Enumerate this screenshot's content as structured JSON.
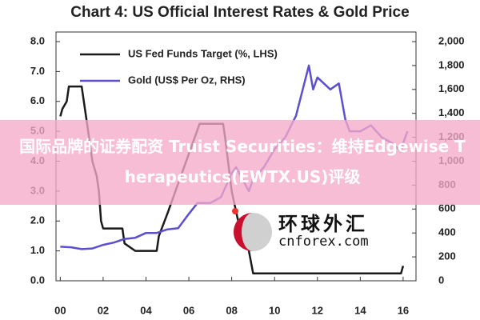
{
  "chart_data": {
    "type": "line",
    "title": "Chart 4: US Official Interest Rates & Gold Price",
    "xlim": [
      -0.2,
      16.6
    ],
    "xticks": [
      {
        "value": 0,
        "label": "00"
      },
      {
        "value": 2,
        "label": "02"
      },
      {
        "value": 4,
        "label": "04"
      },
      {
        "value": 6,
        "label": "06"
      },
      {
        "value": 8,
        "label": "08"
      },
      10,
      12,
      14,
      16
    ],
    "ylim": [
      0,
      8
    ],
    "yticks": [
      {
        "value": 0,
        "label": "0.0"
      },
      {
        "value": 1,
        "label": "1.0"
      },
      {
        "value": 2,
        "label": "2.0"
      },
      {
        "value": 3,
        "label": "3.0"
      },
      {
        "value": 4,
        "label": "4.0"
      },
      {
        "value": 5,
        "label": "5.0"
      },
      {
        "value": 6,
        "label": "6.0"
      },
      {
        "value": 7,
        "label": "7.0"
      },
      {
        "value": 8,
        "label": "8.0"
      }
    ],
    "y2lim": [
      0,
      2000
    ],
    "y2ticks": [
      0,
      200,
      400,
      600,
      800,
      {
        "value": 1000,
        "label": "1,000"
      },
      {
        "value": 1200,
        "label": "1,200"
      },
      {
        "value": 1400,
        "label": "1,400"
      },
      {
        "value": 1600,
        "label": "1,600"
      },
      {
        "value": 1800,
        "label": "1,800"
      },
      {
        "value": 2000,
        "label": "2,000"
      }
    ],
    "legend": "upper left",
    "series": [
      {
        "name": "US Fed Funds Target (%, LHS)",
        "color": "#1a1a1a",
        "x": [
          0,
          0.1,
          0.3,
          0.4,
          1.0,
          1.1,
          1.3,
          1.5,
          1.7,
          1.8,
          1.9,
          2.0,
          2.9,
          3.0,
          3.5,
          4.5,
          4.6,
          5.0,
          5.5,
          6.0,
          6.5,
          7.6,
          7.7,
          8.0,
          8.3,
          8.8,
          9.0,
          15.9,
          16.0
        ],
        "values": [
          5.5,
          5.75,
          6.0,
          6.5,
          6.5,
          6.0,
          5.0,
          4.0,
          3.5,
          3.0,
          2.0,
          1.75,
          1.75,
          1.25,
          1.0,
          1.0,
          1.5,
          2.25,
          3.25,
          4.25,
          5.25,
          5.25,
          4.75,
          3.0,
          2.0,
          1.0,
          0.25,
          0.25,
          0.5
        ]
      },
      {
        "name": "Gold (US$ Per Oz, RHS)",
        "color": "#5b4fd0",
        "axis": "y2",
        "x": [
          0,
          0.5,
          1.0,
          1.5,
          2.0,
          2.5,
          3.0,
          3.5,
          4.0,
          4.5,
          5.0,
          5.5,
          6.0,
          6.4,
          7.0,
          7.5,
          8.0,
          8.2,
          8.8,
          9.0,
          9.5,
          10.0,
          10.5,
          11.0,
          11.6,
          11.8,
          12.0,
          12.6,
          13.0,
          13.3,
          13.5,
          14.0,
          14.5,
          15.0,
          15.5,
          15.9,
          16.0,
          16.2
        ],
        "values": [
          285,
          280,
          265,
          270,
          300,
          320,
          350,
          360,
          400,
          400,
          430,
          440,
          560,
          650,
          650,
          700,
          900,
          950,
          750,
          850,
          950,
          1100,
          1200,
          1380,
          1800,
          1600,
          1700,
          1600,
          1650,
          1350,
          1250,
          1250,
          1300,
          1200,
          1150,
          1080,
          1150,
          1250
        ]
      }
    ]
  },
  "banner": {
    "text": "国际品牌的证券配资 Truist Securities：维持Edgewise Therapeutics(EWTX.US)评级"
  },
  "watermark": {
    "name": "环球外汇",
    "site": "cnforex.com"
  }
}
